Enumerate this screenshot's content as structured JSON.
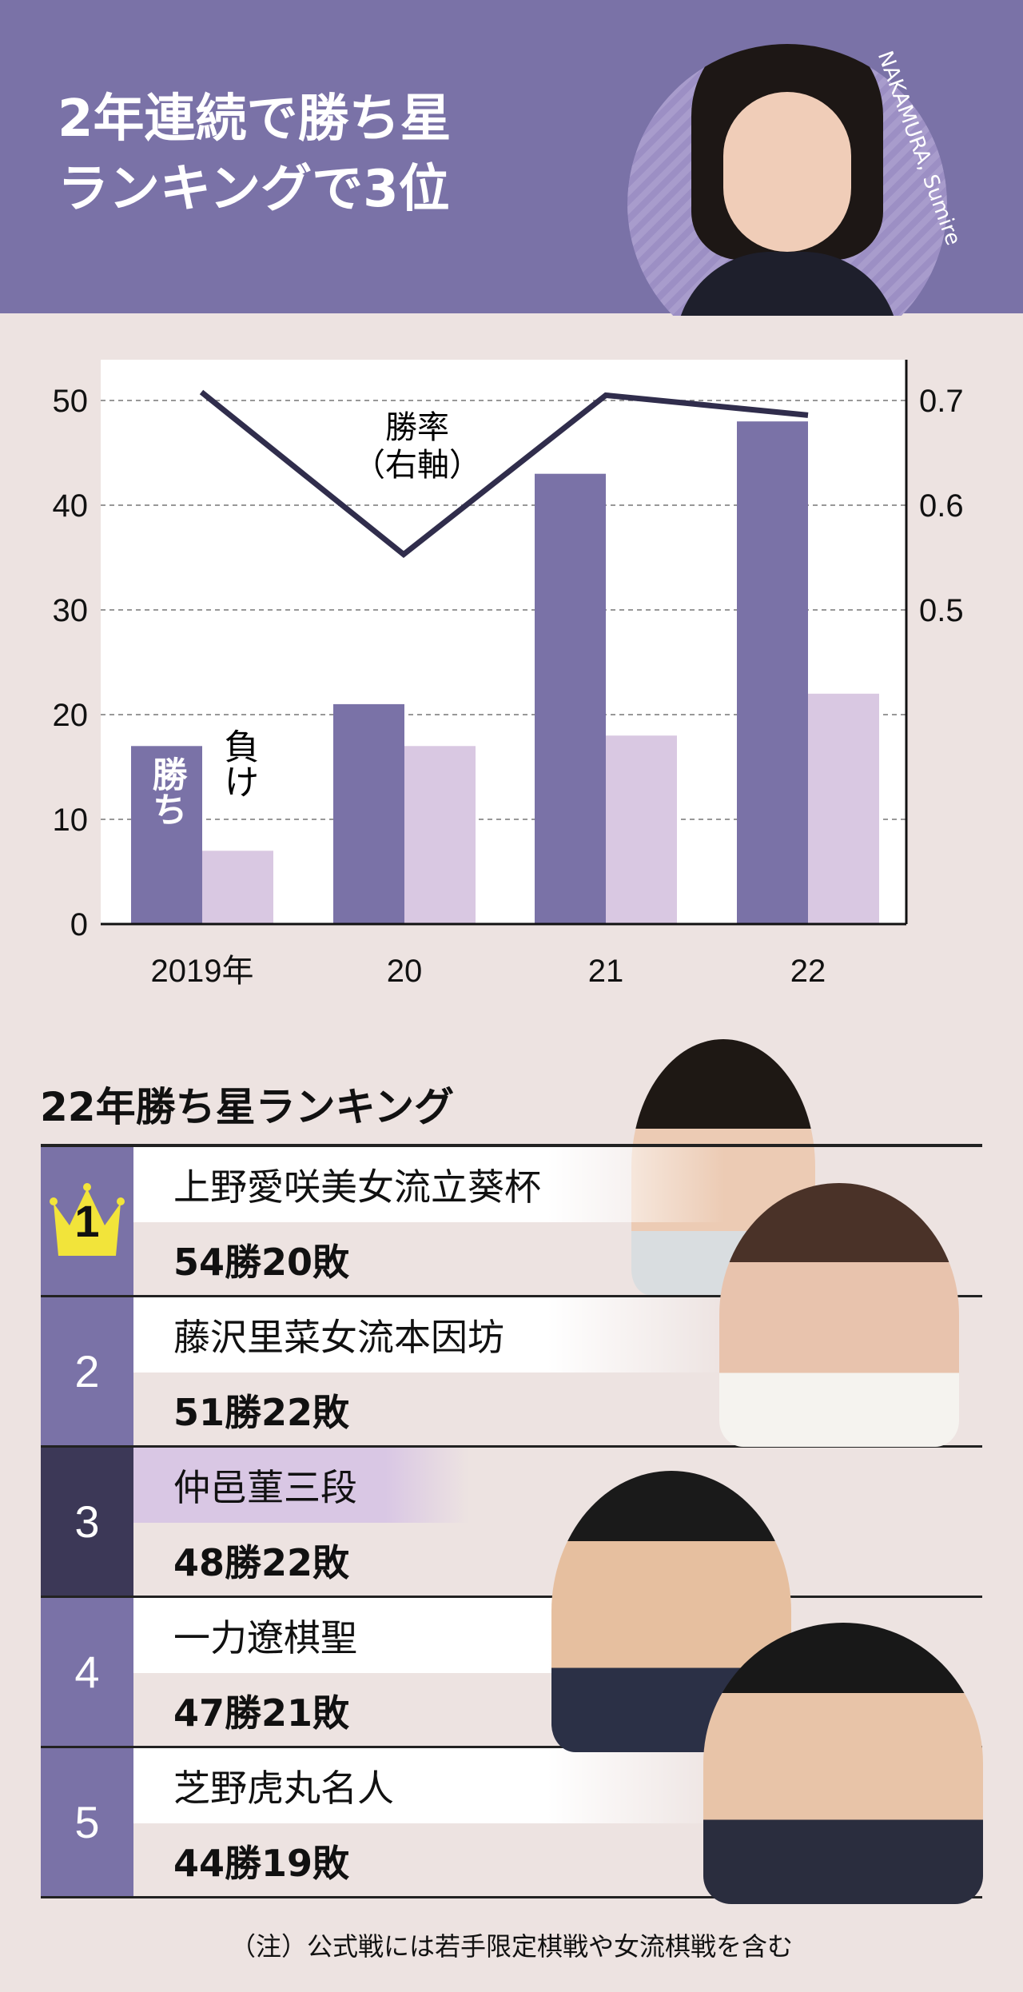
{
  "header": {
    "title_line1": "2年連続で勝ち星",
    "title_line2": "ランキングで3位",
    "romaji": "NAKAMURA, Sumire"
  },
  "chart_data": {
    "type": "bar+line",
    "categories": [
      "2019年",
      "20",
      "21",
      "22"
    ],
    "series": [
      {
        "name": "勝ち",
        "values": [
          17,
          21,
          43,
          48
        ],
        "color": "#7a72a7",
        "axis": "left"
      },
      {
        "name": "負け",
        "values": [
          7,
          17,
          18,
          22
        ],
        "color": "#d9c8e2",
        "axis": "left"
      },
      {
        "name": "勝率（右軸）",
        "values": [
          0.708,
          0.553,
          0.705,
          0.686
        ],
        "color": "#302d4c",
        "type": "line",
        "axis": "right"
      }
    ],
    "left_ticks": [
      "0",
      "10",
      "20",
      "30",
      "40",
      "50"
    ],
    "right_ticks": [
      "0.5",
      "0.6",
      "0.7"
    ],
    "ylim": [
      0,
      50
    ],
    "y2lim": [
      0.2,
      0.7
    ],
    "grid": true,
    "labels": {
      "wins": "勝ち",
      "losses": "負け",
      "rate_line1": "勝率",
      "rate_line2": "（右軸）"
    }
  },
  "ranking": {
    "title": "22年勝ち星ランキング",
    "rows": [
      {
        "rank": "1",
        "name": "上野愛咲美女流立葵杯",
        "record": "54勝20敗"
      },
      {
        "rank": "2",
        "name": "藤沢里菜女流本因坊",
        "record": "51勝22敗"
      },
      {
        "rank": "3",
        "name": "仲邑菫三段",
        "record": "48勝22敗"
      },
      {
        "rank": "4",
        "name": "一力遼棋聖",
        "record": "47勝21敗"
      },
      {
        "rank": "5",
        "name": "芝野虎丸名人",
        "record": "44勝19敗"
      }
    ],
    "crown_color": "#f2e43a"
  },
  "note": "（注）公式戦には若手限定棋戦や女流棋戦を含む"
}
